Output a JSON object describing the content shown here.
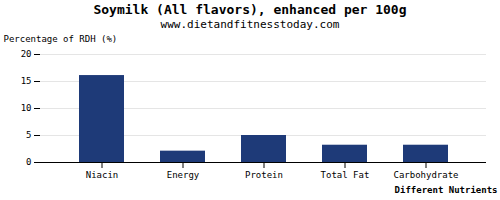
{
  "chart_data": {
    "type": "bar",
    "title": "Soymilk (All flavors), enhanced per 100g",
    "subtitle": "www.dietandfitnesstoday.com",
    "categories": [
      "Niacin",
      "Energy",
      "Protein",
      "Total Fat",
      "Carbohydrate"
    ],
    "values": [
      16.1,
      2.1,
      5.0,
      3.2,
      3.2
    ],
    "color": "#1e3a78",
    "ylabel": "Percentage of RDH (%)",
    "xlabel": "Different Nutrients",
    "ylim": [
      0,
      20
    ],
    "yticks": [
      0,
      5,
      10,
      15,
      20
    ],
    "grid": true
  }
}
